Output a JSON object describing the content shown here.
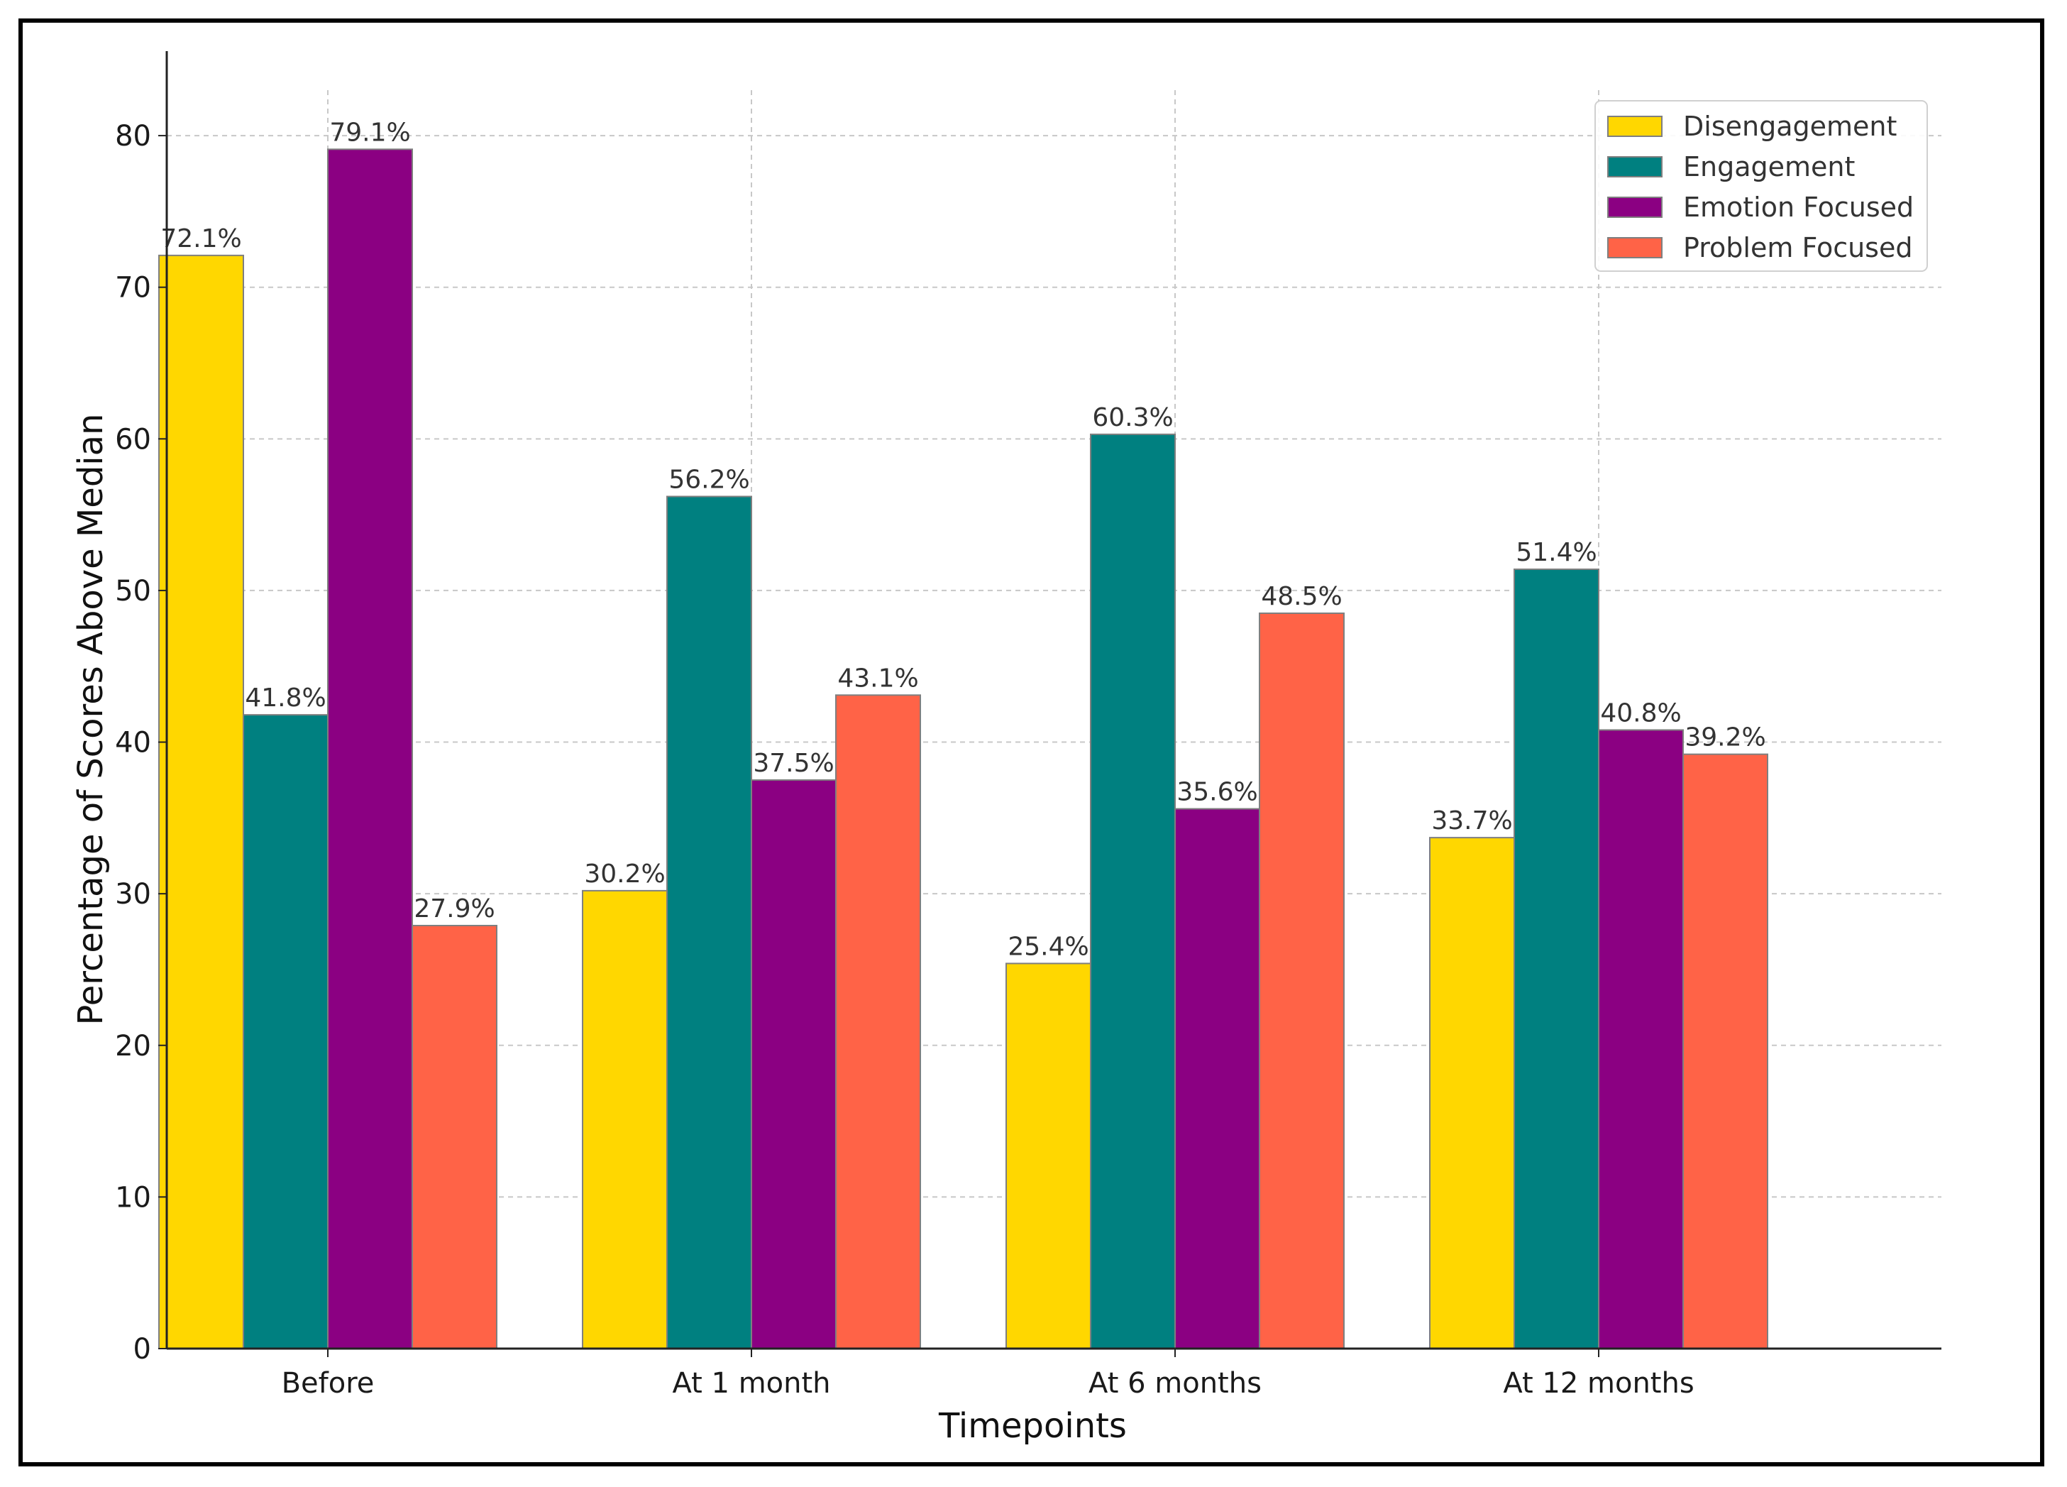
{
  "chart_data": {
    "type": "bar",
    "title": "",
    "xlabel": "Timepoints",
    "ylabel": "Percentage of Scores Above Median",
    "categories": [
      "Before",
      "At 1 month",
      "At 6 months",
      "At 12 months"
    ],
    "series": [
      {
        "name": "Disengagement",
        "color": "#FFD700",
        "values": [
          72.1,
          30.2,
          25.4,
          33.7
        ],
        "labels": [
          "72.1%",
          "30.2%",
          "25.4%",
          "33.7%"
        ]
      },
      {
        "name": "Engagement",
        "color": "#008080",
        "values": [
          41.8,
          56.2,
          60.3,
          51.4
        ],
        "labels": [
          "41.8%",
          "56.2%",
          "60.3%",
          "51.4%"
        ]
      },
      {
        "name": "Emotion Focused",
        "color": "#8B0082",
        "values": [
          79.1,
          37.5,
          35.6,
          40.8
        ],
        "labels": [
          "79.1%",
          "37.5%",
          "35.6%",
          "40.8%"
        ]
      },
      {
        "name": "Problem Focused",
        "color": "#FF6347",
        "values": [
          27.9,
          43.1,
          48.5,
          39.2
        ],
        "labels": [
          "27.9%",
          "43.1%",
          "48.5%",
          "39.2%"
        ]
      }
    ],
    "ylim": [
      0,
      83
    ],
    "yticks": [
      0,
      10,
      20,
      30,
      40,
      50,
      60,
      70,
      80
    ],
    "ytick_labels": [
      "0",
      "10",
      "20",
      "30",
      "40",
      "50",
      "60",
      "70",
      "80"
    ],
    "grid": true,
    "legend_position": "top-right"
  }
}
